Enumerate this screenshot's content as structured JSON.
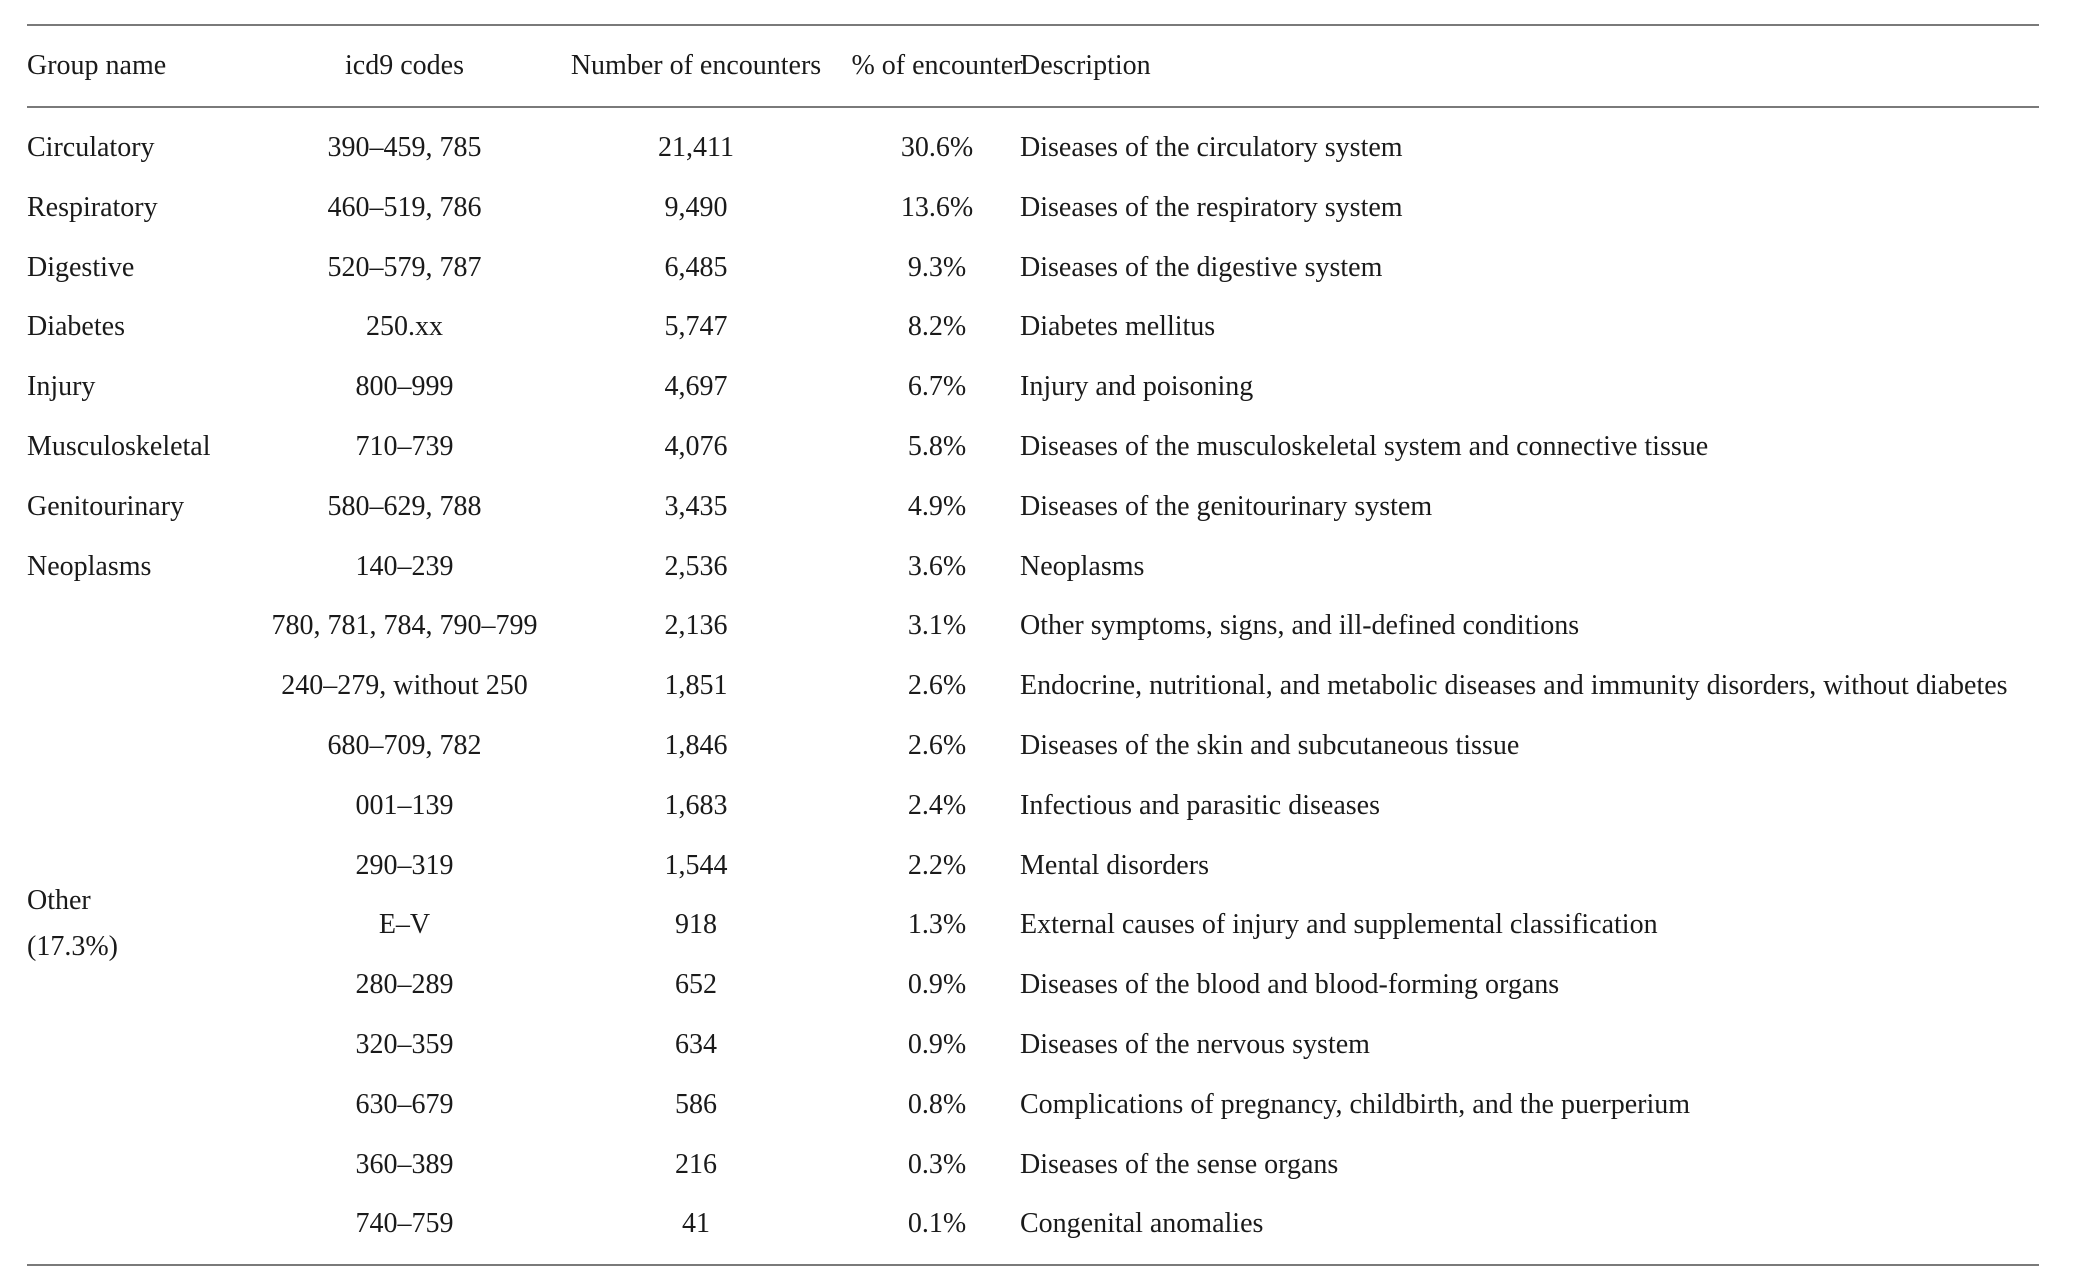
{
  "table": {
    "headers": {
      "group": "Group name",
      "codes": "icd9 codes",
      "count": "Number of encounters",
      "pct": "% of encounter",
      "desc": "Description"
    },
    "rows": [
      {
        "group": "Circulatory",
        "codes": "390–459, 785",
        "count": "21,411",
        "pct": "30.6%",
        "desc": "Diseases of the circulatory system"
      },
      {
        "group": "Respiratory",
        "codes": "460–519, 786",
        "count": "9,490",
        "pct": "13.6%",
        "desc": "Diseases of the respiratory system"
      },
      {
        "group": "Digestive",
        "codes": "520–579, 787",
        "count": "6,485",
        "pct": "9.3%",
        "desc": "Diseases of the digestive system"
      },
      {
        "group": "Diabetes",
        "codes": "250.xx",
        "count": "5,747",
        "pct": "8.2%",
        "desc": "Diabetes mellitus"
      },
      {
        "group": "Injury",
        "codes": "800–999",
        "count": "4,697",
        "pct": "6.7%",
        "desc": "Injury and poisoning"
      },
      {
        "group": "Musculoskeletal",
        "codes": "710–739",
        "count": "4,076",
        "pct": "5.8%",
        "desc": "Diseases of the musculoskeletal system and connective tissue"
      },
      {
        "group": "Genitourinary",
        "codes": "580–629, 788",
        "count": "3,435",
        "pct": "4.9%",
        "desc": "Diseases of the genitourinary system"
      },
      {
        "group": "Neoplasms",
        "codes": "140–239",
        "count": "2,536",
        "pct": "3.6%",
        "desc": "Neoplasms"
      },
      {
        "group": "",
        "codes": "780, 781, 784, 790–799",
        "count": "2,136",
        "pct": "3.1%",
        "desc": "Other symptoms, signs, and ill-defined conditions"
      },
      {
        "group": "",
        "codes": "240–279, without 250",
        "count": "1,851",
        "pct": "2.6%",
        "desc": "Endocrine, nutritional, and metabolic diseases and immunity disorders, without diabetes"
      },
      {
        "group": "",
        "codes": "680–709, 782",
        "count": "1,846",
        "pct": "2.6%",
        "desc": "Diseases of the skin and subcutaneous tissue"
      },
      {
        "group": "",
        "codes": "001–139",
        "count": "1,683",
        "pct": "2.4%",
        "desc": "Infectious and parasitic diseases"
      },
      {
        "group": "",
        "codes": "290–319",
        "count": "1,544",
        "pct": "2.2%",
        "desc": "Mental disorders"
      },
      {
        "group": "",
        "codes": "E–V",
        "count": "918",
        "pct": "1.3%",
        "desc": "External causes of injury and supplemental classification"
      },
      {
        "group": "",
        "codes": "280–289",
        "count": "652",
        "pct": "0.9%",
        "desc": "Diseases of the blood and blood-forming organs"
      },
      {
        "group": "",
        "codes": "320–359",
        "count": "634",
        "pct": "0.9%",
        "desc": "Diseases of the nervous system"
      },
      {
        "group": "",
        "codes": "630–679",
        "count": "586",
        "pct": "0.8%",
        "desc": "Complications of pregnancy, childbirth, and the puerperium"
      },
      {
        "group": "",
        "codes": "360–389",
        "count": "216",
        "pct": "0.3%",
        "desc": "Diseases of the sense organs"
      },
      {
        "group": "",
        "codes": "740–759",
        "count": "41",
        "pct": "0.1%",
        "desc": "Congenital anomalies"
      }
    ],
    "other_group": {
      "name": "Other",
      "pct": "(17.3%)"
    }
  }
}
